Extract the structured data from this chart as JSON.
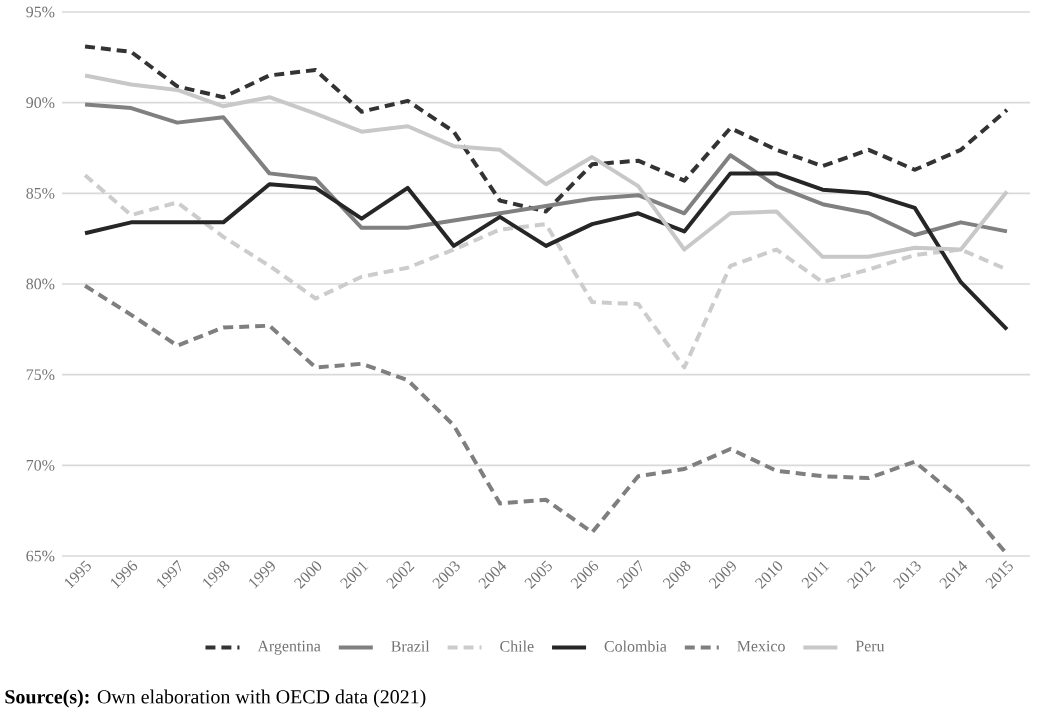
{
  "chart_data": {
    "type": "line",
    "categories": [
      "1995",
      "1996",
      "1997",
      "1998",
      "1999",
      "2000",
      "2001",
      "2002",
      "2003",
      "2004",
      "2005",
      "2006",
      "2007",
      "2008",
      "2009",
      "2010",
      "2011",
      "2012",
      "2013",
      "2014",
      "2015"
    ],
    "series": [
      {
        "name": "Argentina",
        "color": "#333333",
        "line_style": "dashed",
        "values": [
          93.1,
          92.8,
          90.9,
          90.3,
          91.5,
          91.8,
          89.5,
          90.1,
          88.4,
          84.6,
          84.0,
          86.6,
          86.8,
          85.7,
          88.6,
          87.4,
          86.5,
          87.4,
          86.3,
          87.4,
          89.6
        ]
      },
      {
        "name": "Brazil",
        "color": "#808080",
        "line_style": "solid",
        "values": [
          89.9,
          89.7,
          88.9,
          89.2,
          86.1,
          85.8,
          83.1,
          83.1,
          83.5,
          83.9,
          84.3,
          84.7,
          84.9,
          83.9,
          87.1,
          85.4,
          84.4,
          83.9,
          82.7,
          83.4,
          82.9
        ]
      },
      {
        "name": "Chile",
        "color": "#cccccc",
        "line_style": "dashed",
        "values": [
          86.0,
          83.8,
          84.5,
          82.6,
          81.0,
          79.2,
          80.4,
          80.9,
          81.9,
          83.0,
          83.3,
          79.0,
          78.9,
          75.4,
          81.0,
          81.9,
          80.1,
          80.8,
          81.6,
          81.9,
          80.8
        ]
      },
      {
        "name": "Colombia",
        "color": "#262626",
        "line_style": "solid",
        "values": [
          82.8,
          83.4,
          83.4,
          83.4,
          85.5,
          85.3,
          83.6,
          85.3,
          82.1,
          83.7,
          82.1,
          83.3,
          83.9,
          82.9,
          86.1,
          86.1,
          85.2,
          85.0,
          84.2,
          80.1,
          77.5
        ]
      },
      {
        "name": "Mexico",
        "color": "#7f7f7f",
        "line_style": "dashed",
        "values": [
          79.9,
          78.3,
          76.6,
          77.6,
          77.7,
          75.4,
          75.6,
          74.7,
          72.2,
          67.9,
          68.1,
          66.3,
          69.4,
          69.8,
          70.9,
          69.7,
          69.4,
          69.3,
          70.2,
          68.1,
          65.1
        ]
      },
      {
        "name": "Peru",
        "color": "#c8c8c8",
        "line_style": "solid",
        "values": [
          91.5,
          91.0,
          90.7,
          89.8,
          90.3,
          89.4,
          88.4,
          88.7,
          87.6,
          87.4,
          85.5,
          87.0,
          85.4,
          81.9,
          83.9,
          84.0,
          81.5,
          81.5,
          82.0,
          81.9,
          85.1
        ]
      }
    ],
    "ylim": [
      65,
      95
    ],
    "yticks": [
      {
        "value": 65,
        "label": "65%"
      },
      {
        "value": 70,
        "label": "70%"
      },
      {
        "value": 75,
        "label": "75%"
      },
      {
        "value": 80,
        "label": "80%"
      },
      {
        "value": 85,
        "label": "85%"
      },
      {
        "value": 90,
        "label": "90%"
      },
      {
        "value": 95,
        "label": "95%"
      }
    ],
    "grid": "y",
    "legend": "bottom",
    "annotations": [
      "**Source(s):** Own elaboration with OECD data (2021)"
    ]
  }
}
